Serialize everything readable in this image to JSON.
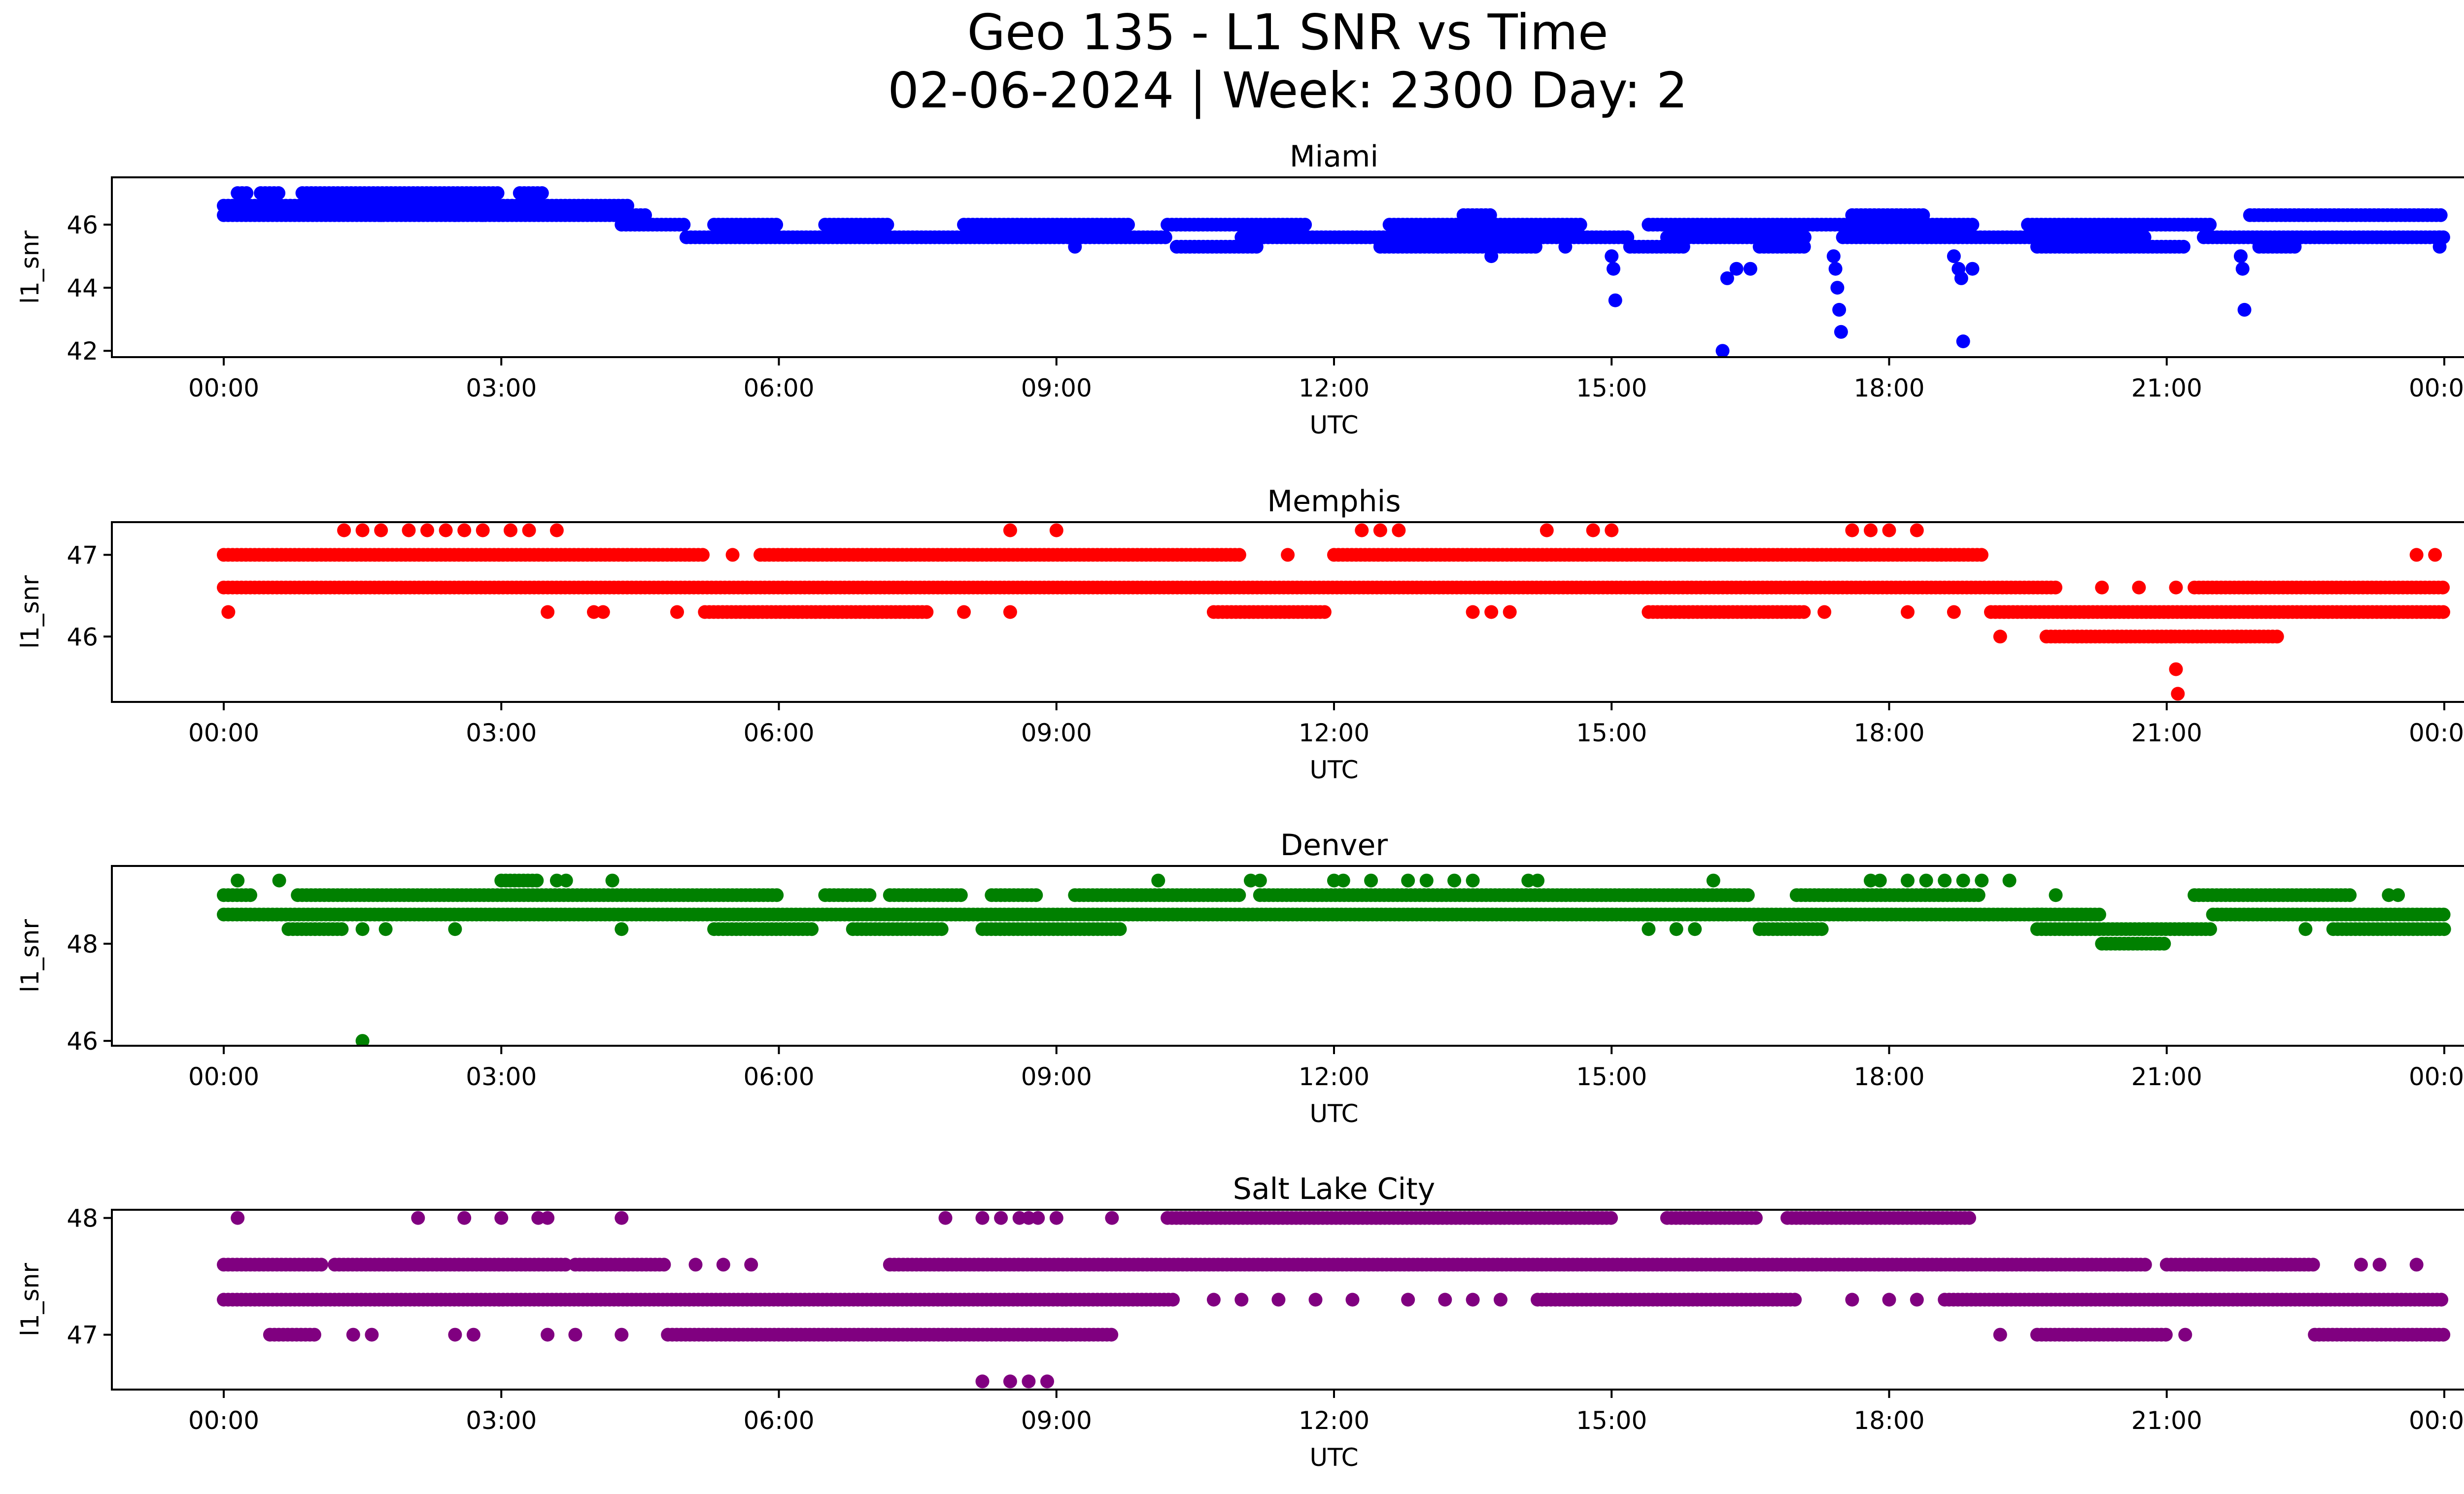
{
  "figure": {
    "title_line1": "Geo 135 - L1 SNR vs Time",
    "title_line2": "02-06-2024 | Week: 2300 Day: 2"
  },
  "chart_data": [
    {
      "type": "scatter",
      "title": "Miami",
      "xlabel": "UTC",
      "ylabel": "l1_snr",
      "color": "#0000ff",
      "xlim": [
        "00:00",
        "24:00"
      ],
      "ylim": [
        41.8,
        47.5
      ],
      "xticks": [
        "00:00",
        "03:00",
        "06:00",
        "09:00",
        "12:00",
        "15:00",
        "18:00",
        "21:00",
        "00:00"
      ],
      "yticks": [
        42,
        44,
        46
      ],
      "bands": [
        {
          "y": 46.6,
          "segments": [
            [
              0.0,
              4.4
            ]
          ]
        },
        {
          "y": 46.3,
          "segments": [
            [
              0.0,
              4.6
            ]
          ]
        },
        {
          "y": 47.0,
          "segments": [
            [
              0.15,
              0.25
            ],
            [
              0.4,
              0.6
            ],
            [
              0.85,
              3.0
            ],
            [
              3.2,
              3.45
            ]
          ]
        },
        {
          "y": 46.0,
          "segments": [
            [
              4.3,
              5.0
            ],
            [
              5.3,
              6.0
            ],
            [
              6.5,
              7.2
            ],
            [
              8.0,
              9.8
            ],
            [
              10.2,
              11.7
            ],
            [
              12.6,
              14.7
            ],
            [
              15.4,
              18.9
            ],
            [
              19.5,
              21.5
            ]
          ]
        },
        {
          "y": 45.6,
          "segments": [
            [
              5.0,
              10.2
            ],
            [
              11.0,
              15.2
            ],
            [
              15.6,
              17.1
            ],
            [
              17.5,
              20.8
            ],
            [
              21.4,
              24.0
            ]
          ]
        },
        {
          "y": 45.3,
          "segments": [
            [
              10.3,
              11.2
            ],
            [
              12.5,
              14.2
            ],
            [
              15.2,
              15.8
            ],
            [
              16.6,
              17.1
            ],
            [
              19.6,
              21.2
            ],
            [
              22.0,
              22.4
            ]
          ]
        },
        {
          "y": 46.3,
          "segments": [
            [
              13.4,
              13.7
            ],
            [
              17.6,
              18.4
            ],
            [
              21.9,
              24.0
            ]
          ]
        }
      ],
      "points": [
        {
          "t": 1.7,
          "y": 46.3
        },
        {
          "t": 2.5,
          "y": 46.3
        },
        {
          "t": 2.8,
          "y": 46.3
        },
        {
          "t": 9.2,
          "y": 45.3
        },
        {
          "t": 13.7,
          "y": 45.0
        },
        {
          "t": 14.5,
          "y": 45.3
        },
        {
          "t": 15.0,
          "y": 45.0
        },
        {
          "t": 15.02,
          "y": 44.6
        },
        {
          "t": 15.04,
          "y": 43.6
        },
        {
          "t": 16.2,
          "y": 42.0
        },
        {
          "t": 16.25,
          "y": 44.3
        },
        {
          "t": 16.35,
          "y": 44.6
        },
        {
          "t": 16.5,
          "y": 44.6
        },
        {
          "t": 17.4,
          "y": 45.0
        },
        {
          "t": 17.42,
          "y": 44.6
        },
        {
          "t": 17.44,
          "y": 44.0
        },
        {
          "t": 17.46,
          "y": 43.3
        },
        {
          "t": 17.48,
          "y": 42.6
        },
        {
          "t": 18.7,
          "y": 45.0
        },
        {
          "t": 18.75,
          "y": 44.6
        },
        {
          "t": 18.78,
          "y": 44.3
        },
        {
          "t": 18.8,
          "y": 42.3
        },
        {
          "t": 18.9,
          "y": 44.6
        },
        {
          "t": 21.8,
          "y": 45.0
        },
        {
          "t": 21.82,
          "y": 44.6
        },
        {
          "t": 21.84,
          "y": 43.3
        },
        {
          "t": 23.95,
          "y": 45.3
        },
        {
          "t": 23.95,
          "y": 45.6
        }
      ]
    },
    {
      "type": "scatter",
      "title": "Memphis",
      "xlabel": "UTC",
      "ylabel": "l1_snr",
      "color": "#ff0000",
      "xlim": [
        "00:00",
        "24:00"
      ],
      "ylim": [
        45.2,
        47.4
      ],
      "xticks": [
        "00:00",
        "03:00",
        "06:00",
        "09:00",
        "12:00",
        "15:00",
        "18:00",
        "21:00",
        "00:00"
      ],
      "yticks": [
        46,
        47
      ],
      "bands": [
        {
          "y": 47.0,
          "segments": [
            [
              0.0,
              5.2
            ],
            [
              5.8,
              11.0
            ],
            [
              12.0,
              19.0
            ]
          ]
        },
        {
          "y": 46.6,
          "segments": [
            [
              0.0,
              19.8
            ],
            [
              21.3,
              24.0
            ]
          ]
        },
        {
          "y": 46.3,
          "segments": [
            [
              5.2,
              7.6
            ],
            [
              10.7,
              11.9
            ],
            [
              15.4,
              17.1
            ],
            [
              19.1,
              24.0
            ]
          ]
        },
        {
          "y": 46.0,
          "segments": [
            [
              19.7,
              22.2
            ]
          ]
        }
      ],
      "points": [
        {
          "t": 0.05,
          "y": 46.3
        },
        {
          "t": 3.5,
          "y": 46.3
        },
        {
          "t": 4.0,
          "y": 46.3
        },
        {
          "t": 4.1,
          "y": 46.3
        },
        {
          "t": 4.9,
          "y": 46.3
        },
        {
          "t": 8.0,
          "y": 46.3
        },
        {
          "t": 8.5,
          "y": 46.3
        },
        {
          "t": 13.5,
          "y": 46.3
        },
        {
          "t": 13.7,
          "y": 46.3
        },
        {
          "t": 13.9,
          "y": 46.3
        },
        {
          "t": 17.3,
          "y": 46.3
        },
        {
          "t": 18.2,
          "y": 46.3
        },
        {
          "t": 18.7,
          "y": 46.3
        },
        {
          "t": 5.5,
          "y": 47.0
        },
        {
          "t": 11.5,
          "y": 47.0
        },
        {
          "t": 19.2,
          "y": 46.0
        },
        {
          "t": 1.3,
          "y": 47.3
        },
        {
          "t": 1.5,
          "y": 47.3
        },
        {
          "t": 1.7,
          "y": 47.3
        },
        {
          "t": 2.0,
          "y": 47.3
        },
        {
          "t": 2.2,
          "y": 47.3
        },
        {
          "t": 2.4,
          "y": 47.3
        },
        {
          "t": 2.6,
          "y": 47.3
        },
        {
          "t": 2.8,
          "y": 47.3
        },
        {
          "t": 3.1,
          "y": 47.3
        },
        {
          "t": 3.3,
          "y": 47.3
        },
        {
          "t": 3.6,
          "y": 47.3
        },
        {
          "t": 8.5,
          "y": 47.3
        },
        {
          "t": 9.0,
          "y": 47.3
        },
        {
          "t": 12.3,
          "y": 47.3
        },
        {
          "t": 12.5,
          "y": 47.3
        },
        {
          "t": 12.7,
          "y": 47.3
        },
        {
          "t": 14.3,
          "y": 47.3
        },
        {
          "t": 14.8,
          "y": 47.3
        },
        {
          "t": 15.0,
          "y": 47.3
        },
        {
          "t": 17.6,
          "y": 47.3
        },
        {
          "t": 17.8,
          "y": 47.3
        },
        {
          "t": 18.0,
          "y": 47.3
        },
        {
          "t": 18.3,
          "y": 47.3
        },
        {
          "t": 20.3,
          "y": 46.6
        },
        {
          "t": 20.7,
          "y": 46.6
        },
        {
          "t": 21.1,
          "y": 46.6
        },
        {
          "t": 21.05,
          "y": 46.0
        },
        {
          "t": 21.1,
          "y": 45.6
        },
        {
          "t": 21.12,
          "y": 45.3
        },
        {
          "t": 23.7,
          "y": 47.0
        },
        {
          "t": 23.9,
          "y": 47.0
        }
      ]
    },
    {
      "type": "scatter",
      "title": "Denver",
      "xlabel": "UTC",
      "ylabel": "l1_snr",
      "color": "#008000",
      "xlim": [
        "00:00",
        "24:00"
      ],
      "ylim": [
        45.9,
        49.6
      ],
      "xticks": [
        "00:00",
        "03:00",
        "06:00",
        "09:00",
        "12:00",
        "15:00",
        "18:00",
        "21:00",
        "00:00"
      ],
      "yticks": [
        46,
        48
      ],
      "bands": [
        {
          "y": 49.0,
          "segments": [
            [
              0.0,
              0.3
            ],
            [
              0.8,
              6.0
            ],
            [
              6.5,
              7.0
            ],
            [
              7.2,
              8.0
            ],
            [
              8.3,
              8.8
            ],
            [
              9.2,
              11.0
            ],
            [
              11.2,
              16.5
            ],
            [
              17.0,
              19.0
            ],
            [
              21.3,
              23.0
            ]
          ]
        },
        {
          "y": 48.6,
          "segments": [
            [
              0.0,
              19.7
            ],
            [
              21.5,
              24.0
            ]
          ]
        },
        {
          "y": 48.3,
          "segments": [
            [
              0.7,
              1.3
            ],
            [
              5.3,
              6.4
            ],
            [
              6.8,
              7.8
            ],
            [
              8.2,
              9.7
            ],
            [
              16.6,
              17.3
            ],
            [
              19.6,
              21.5
            ],
            [
              22.8,
              24.0
            ]
          ]
        },
        {
          "y": 48.6,
          "segments": [
            [
              19.6,
              20.3
            ]
          ]
        },
        {
          "y": 48.0,
          "segments": [
            [
              20.3,
              21.0
            ]
          ]
        },
        {
          "y": 49.3,
          "segments": [
            [
              3.0,
              3.4
            ]
          ]
        }
      ],
      "points": [
        {
          "t": 0.15,
          "y": 49.3
        },
        {
          "t": 0.6,
          "y": 49.3
        },
        {
          "t": 1.5,
          "y": 46.0
        },
        {
          "t": 1.5,
          "y": 48.3
        },
        {
          "t": 1.75,
          "y": 48.3
        },
        {
          "t": 2.5,
          "y": 48.3
        },
        {
          "t": 4.3,
          "y": 48.3
        },
        {
          "t": 3.6,
          "y": 49.3
        },
        {
          "t": 3.7,
          "y": 49.3
        },
        {
          "t": 4.2,
          "y": 49.3
        },
        {
          "t": 10.1,
          "y": 49.3
        },
        {
          "t": 11.1,
          "y": 49.3
        },
        {
          "t": 11.2,
          "y": 49.3
        },
        {
          "t": 12.0,
          "y": 49.3
        },
        {
          "t": 12.1,
          "y": 49.3
        },
        {
          "t": 12.4,
          "y": 49.3
        },
        {
          "t": 12.8,
          "y": 49.3
        },
        {
          "t": 13.0,
          "y": 49.3
        },
        {
          "t": 13.3,
          "y": 49.3
        },
        {
          "t": 13.5,
          "y": 49.3
        },
        {
          "t": 14.1,
          "y": 49.3
        },
        {
          "t": 14.2,
          "y": 49.3
        },
        {
          "t": 16.1,
          "y": 49.3
        },
        {
          "t": 17.8,
          "y": 49.3
        },
        {
          "t": 17.9,
          "y": 49.3
        },
        {
          "t": 18.2,
          "y": 49.3
        },
        {
          "t": 18.4,
          "y": 49.3
        },
        {
          "t": 18.6,
          "y": 49.3
        },
        {
          "t": 18.8,
          "y": 49.3
        },
        {
          "t": 19.0,
          "y": 49.3
        },
        {
          "t": 19.3,
          "y": 49.3
        },
        {
          "t": 19.8,
          "y": 49.0
        },
        {
          "t": 23.4,
          "y": 49.0
        },
        {
          "t": 23.5,
          "y": 49.0
        },
        {
          "t": 15.4,
          "y": 48.3
        },
        {
          "t": 15.7,
          "y": 48.3
        },
        {
          "t": 15.9,
          "y": 48.3
        },
        {
          "t": 22.5,
          "y": 48.3
        }
      ]
    },
    {
      "type": "scatter",
      "title": "Salt Lake City",
      "xlabel": "UTC",
      "ylabel": "l1_snr",
      "color": "#800080",
      "xlim": [
        "00:00",
        "24:00"
      ],
      "ylim": [
        46.53,
        48.07
      ],
      "xticks": [
        "00:00",
        "03:00",
        "06:00",
        "09:00",
        "12:00",
        "15:00",
        "18:00",
        "21:00",
        "00:00"
      ],
      "yticks": [
        47,
        48
      ],
      "bands": [
        {
          "y": 47.6,
          "segments": [
            [
              0.0,
              1.1
            ],
            [
              1.2,
              3.7
            ],
            [
              3.8,
              4.8
            ],
            [
              7.2,
              20.8
            ],
            [
              21.0,
              22.6
            ]
          ]
        },
        {
          "y": 47.3,
          "segments": [
            [
              0.0,
              10.3
            ],
            [
              14.2,
              17.0
            ],
            [
              18.6,
              24.0
            ]
          ]
        },
        {
          "y": 47.0,
          "segments": [
            [
              0.5,
              1.0
            ],
            [
              4.8,
              9.6
            ],
            [
              19.6,
              21.0
            ],
            [
              22.6,
              24.0
            ]
          ]
        },
        {
          "y": 48.0,
          "segments": [
            [
              10.2,
              15.0
            ],
            [
              15.6,
              16.6
            ],
            [
              16.9,
              18.9
            ]
          ]
        }
      ],
      "points": [
        {
          "t": 0.15,
          "y": 48.0
        },
        {
          "t": 2.1,
          "y": 48.0
        },
        {
          "t": 2.6,
          "y": 48.0
        },
        {
          "t": 3.0,
          "y": 48.0
        },
        {
          "t": 3.4,
          "y": 48.0
        },
        {
          "t": 3.5,
          "y": 48.0
        },
        {
          "t": 4.3,
          "y": 48.0
        },
        {
          "t": 7.8,
          "y": 48.0
        },
        {
          "t": 8.2,
          "y": 48.0
        },
        {
          "t": 8.4,
          "y": 48.0
        },
        {
          "t": 8.6,
          "y": 48.0
        },
        {
          "t": 8.7,
          "y": 48.0
        },
        {
          "t": 8.8,
          "y": 48.0
        },
        {
          "t": 9.0,
          "y": 48.0
        },
        {
          "t": 9.6,
          "y": 48.0
        },
        {
          "t": 1.4,
          "y": 47.0
        },
        {
          "t": 1.6,
          "y": 47.0
        },
        {
          "t": 2.5,
          "y": 47.0
        },
        {
          "t": 2.7,
          "y": 47.0
        },
        {
          "t": 3.5,
          "y": 47.0
        },
        {
          "t": 3.8,
          "y": 47.0
        },
        {
          "t": 4.3,
          "y": 47.0
        },
        {
          "t": 5.1,
          "y": 47.6
        },
        {
          "t": 5.4,
          "y": 47.6
        },
        {
          "t": 5.7,
          "y": 47.6
        },
        {
          "t": 8.2,
          "y": 46.6
        },
        {
          "t": 8.5,
          "y": 46.6
        },
        {
          "t": 8.7,
          "y": 46.6
        },
        {
          "t": 8.9,
          "y": 46.6
        },
        {
          "t": 10.7,
          "y": 47.3
        },
        {
          "t": 11.0,
          "y": 47.3
        },
        {
          "t": 11.4,
          "y": 47.3
        },
        {
          "t": 11.8,
          "y": 47.3
        },
        {
          "t": 12.2,
          "y": 47.3
        },
        {
          "t": 12.8,
          "y": 47.3
        },
        {
          "t": 13.2,
          "y": 47.3
        },
        {
          "t": 13.5,
          "y": 47.3
        },
        {
          "t": 13.8,
          "y": 47.3
        },
        {
          "t": 18.3,
          "y": 47.3
        },
        {
          "t": 18.0,
          "y": 47.3
        },
        {
          "t": 17.6,
          "y": 47.3
        },
        {
          "t": 19.2,
          "y": 47.0
        },
        {
          "t": 21.2,
          "y": 47.0
        },
        {
          "t": 23.1,
          "y": 47.6
        },
        {
          "t": 23.3,
          "y": 47.6
        },
        {
          "t": 23.7,
          "y": 47.6
        }
      ]
    }
  ]
}
